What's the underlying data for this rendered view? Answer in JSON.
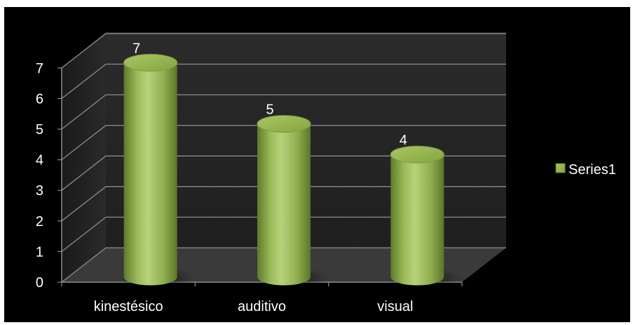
{
  "chart_data": {
    "type": "bar",
    "style": "3d-cylinder",
    "categories": [
      "kinestésico",
      "auditivo",
      "visual"
    ],
    "series": [
      {
        "name": "Series1",
        "values": [
          7,
          5,
          4
        ],
        "color": "#9BBB59"
      }
    ],
    "data_labels": [
      "7",
      "5",
      "4"
    ],
    "y_ticks": [
      "0",
      "1",
      "2",
      "3",
      "4",
      "5",
      "6",
      "7"
    ],
    "ylim": [
      0,
      7
    ],
    "grid": true,
    "legend_position": "right",
    "background": "#000000",
    "gridline_color": "#8C8C8C",
    "wall_color": "#262626",
    "floor_color": "#3A3A3A"
  }
}
